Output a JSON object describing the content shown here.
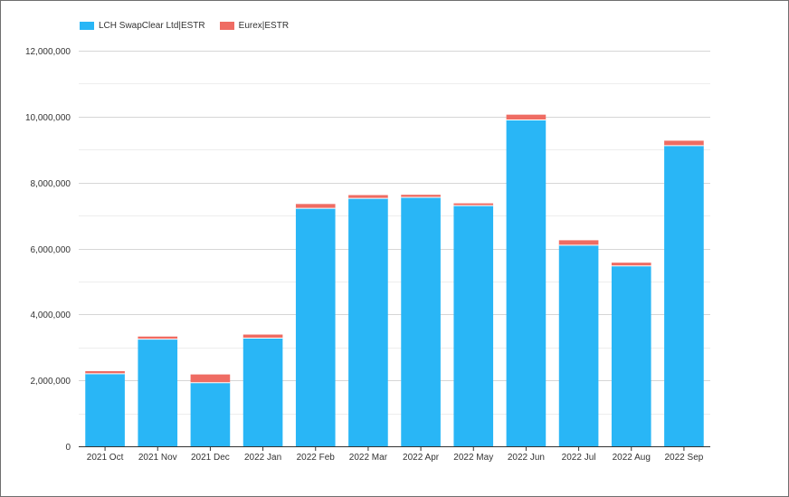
{
  "chart_data": {
    "type": "bar",
    "stacked": true,
    "categories": [
      "2021 Oct",
      "2021 Nov",
      "2021 Dec",
      "2022 Jan",
      "2022 Feb",
      "2022 Mar",
      "2022 Apr",
      "2022 May",
      "2022 Jun",
      "2022 Jul",
      "2022 Aug",
      "2022 Sep"
    ],
    "series": [
      {
        "name": "LCH SwapClear Ltd|ESTR",
        "color": "#29b6f6",
        "values": [
          2200000,
          3250000,
          1930000,
          3280000,
          7220000,
          7520000,
          7550000,
          7300000,
          9900000,
          6100000,
          5470000,
          9120000
        ]
      },
      {
        "name": "Eurex|ESTR",
        "color": "#ef6c63",
        "values": [
          80000,
          80000,
          250000,
          110000,
          130000,
          100000,
          80000,
          70000,
          160000,
          150000,
          100000,
          150000
        ]
      }
    ],
    "ylim": [
      0,
      12000000
    ],
    "yticks": [
      "0",
      "2,000,000",
      "4,000,000",
      "6,000,000",
      "8,000,000",
      "10,000,000",
      "12,000,000"
    ],
    "ytick_values": [
      0,
      2000000,
      4000000,
      6000000,
      8000000,
      10000000,
      12000000
    ],
    "grid": true,
    "legend_position": "top-left"
  }
}
